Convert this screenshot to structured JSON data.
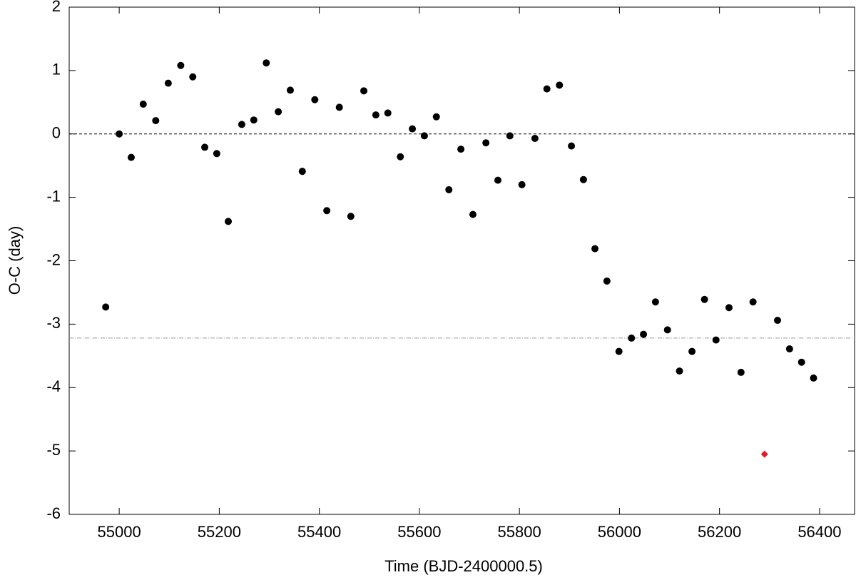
{
  "chart_data": {
    "type": "scatter",
    "xlabel": "Time (BJD-2400000.5)",
    "ylabel": "O-C (day)",
    "xlim": [
      54900,
      56470
    ],
    "ylim": [
      -6,
      2
    ],
    "xticks": [
      55000,
      55200,
      55400,
      55600,
      55800,
      56000,
      56200,
      56400
    ],
    "yticks": [
      -6,
      -5,
      -4,
      -3,
      -2,
      -1,
      0,
      1,
      2
    ],
    "hlines": [
      {
        "value": 0,
        "color": "#000000",
        "dash": "4,3"
      },
      {
        "value": -3.22,
        "color": "#999999",
        "dash": "6,2,1,2"
      }
    ],
    "series": [
      {
        "color": "#000000",
        "marker": "circle",
        "x": [
          54973,
          55000,
          55024,
          55048,
          55073,
          55098,
          55123,
          55147,
          55171,
          55195,
          55218,
          55245,
          55269,
          55294,
          55318,
          55342,
          55366,
          55391,
          55415,
          55440,
          55463,
          55489,
          55513,
          55537,
          55562,
          55586,
          55610,
          55634,
          55659,
          55683,
          55707,
          55733,
          55757,
          55781,
          55805,
          55831,
          55855,
          55880,
          55904,
          55928,
          55951,
          55975,
          55999,
          56024,
          56048,
          56072,
          56096,
          56120,
          56145,
          56170,
          56193,
          56219,
          56243,
          56267,
          56316,
          56340,
          56364,
          56388
        ],
        "values": [
          -2.73,
          0.0,
          -0.37,
          0.47,
          0.21,
          0.8,
          1.08,
          0.9,
          -0.21,
          -0.31,
          -1.38,
          0.15,
          0.22,
          1.12,
          0.35,
          0.69,
          -0.59,
          0.54,
          -1.21,
          0.42,
          -1.3,
          0.68,
          0.3,
          0.33,
          -0.36,
          0.08,
          -0.03,
          0.27,
          -0.88,
          -0.24,
          -1.27,
          -0.14,
          -0.73,
          -0.03,
          -0.8,
          -0.07,
          0.71,
          0.77,
          -0.19,
          -0.72,
          -1.81,
          -2.32,
          -3.43,
          -3.22,
          -3.16,
          -2.65,
          -3.09,
          -3.74,
          -3.43,
          -2.61,
          -3.25,
          -2.74,
          -3.76,
          -2.65,
          -2.94,
          -3.39,
          -3.6,
          -3.85
        ]
      },
      {
        "color": "#e41a1c",
        "marker": "diamond",
        "x": [
          56290
        ],
        "values": [
          -5.05
        ]
      }
    ]
  }
}
